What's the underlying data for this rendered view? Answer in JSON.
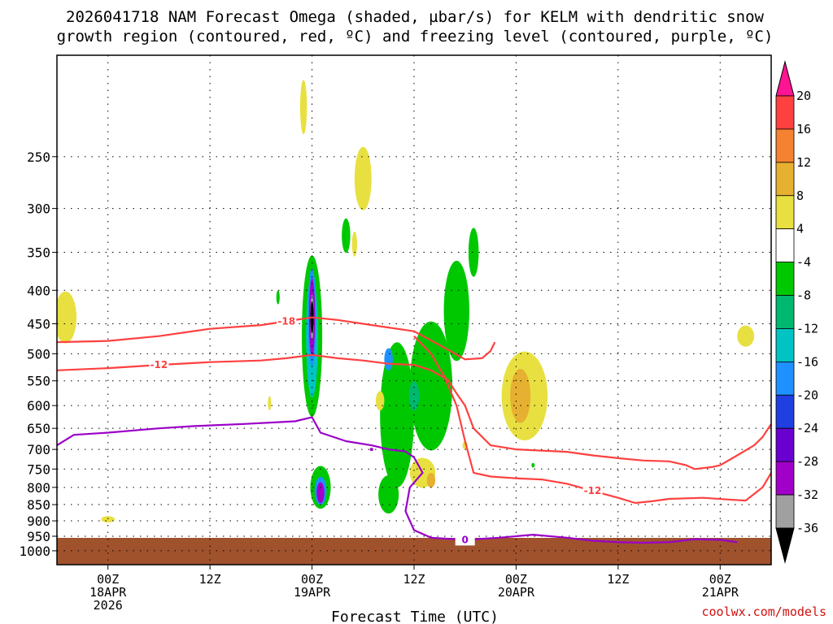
{
  "title_line1": "2026041718 NAM Forecast Omega (shaded, µbar/s) for KELM with dendritic snow",
  "title_line2": "growth region (contoured, red, ºC) and freezing level (contoured, purple, ºC)",
  "credit": "coolwx.com/models",
  "chart_data": {
    "type": "time-height cross section",
    "title": "2026041718 NAM Forecast Omega (shaded, µbar/s) for KELM with dendritic snow growth region (contoured, red, ºC) and freezing level (contoured, purple, ºC)",
    "xlabel": "Forecast Time (UTC)",
    "ylabel": "",
    "x_range_hours": [
      -6,
      78
    ],
    "y_range_hpa": [
      1050,
      175
    ],
    "x_ticks": [
      {
        "hour": 0,
        "l1": "00Z",
        "l2": "18APR",
        "l3": "2026"
      },
      {
        "hour": 12,
        "l1": "12Z",
        "l2": "",
        "l3": ""
      },
      {
        "hour": 24,
        "l1": "00Z",
        "l2": "19APR",
        "l3": ""
      },
      {
        "hour": 36,
        "l1": "12Z",
        "l2": "",
        "l3": ""
      },
      {
        "hour": 48,
        "l1": "00Z",
        "l2": "20APR",
        "l3": ""
      },
      {
        "hour": 60,
        "l1": "12Z",
        "l2": "",
        "l3": ""
      },
      {
        "hour": 72,
        "l1": "00Z",
        "l2": "21APR",
        "l3": ""
      }
    ],
    "y_ticks": [
      250,
      300,
      350,
      400,
      450,
      500,
      550,
      600,
      650,
      700,
      750,
      800,
      850,
      900,
      950,
      1000
    ],
    "colorbar": {
      "levels": [
        "20",
        "16",
        "12",
        "8",
        "4",
        "-4",
        "-8",
        "-12",
        "-16",
        "-20",
        "-24",
        "-28",
        "-32",
        "-36"
      ],
      "colors": [
        "#ff1493",
        "#ff4040",
        "#ff7f00",
        "#ff7f00",
        "#e0b030",
        "#ffffff",
        "#ffff33",
        "#00c800",
        "#00bb6e",
        "#00c4c4",
        "#1e90ff",
        "#1e3cff",
        "#7a00c8",
        "#b400d6",
        "#a0a0a0",
        "#000000"
      ],
      "bands": [
        "#ff1493",
        "#ff4040",
        "#f58231",
        "#e6b030",
        "#e8e040",
        "#ffffff",
        "#00c800",
        "#00b870",
        "#00c4c4",
        "#1e90ff",
        "#1f3fe0",
        "#6a00d0",
        "#a000c8",
        "#a0a0a0",
        "#000000"
      ]
    },
    "ground_color": "#a0522d",
    "dendritic_contours": [
      {
        "label": "-18",
        "color": "#ff4040",
        "points": [
          [
            -6,
            480
          ],
          [
            0,
            478
          ],
          [
            6,
            470
          ],
          [
            12,
            458
          ],
          [
            18,
            452
          ],
          [
            21,
            446
          ],
          [
            24,
            440
          ],
          [
            27,
            444
          ],
          [
            30,
            450
          ],
          [
            33,
            456
          ],
          [
            36,
            462
          ],
          [
            39,
            485
          ],
          [
            42,
            510
          ],
          [
            44,
            508
          ],
          [
            45,
            495
          ],
          [
            45.5,
            480
          ]
        ]
      },
      {
        "label": "-12",
        "color": "#ff4040",
        "points": [
          [
            -6,
            530
          ],
          [
            0,
            526
          ],
          [
            6,
            520
          ],
          [
            12,
            515
          ],
          [
            18,
            512
          ],
          [
            21,
            508
          ],
          [
            24,
            502
          ],
          [
            27,
            508
          ],
          [
            30,
            512
          ],
          [
            33,
            518
          ],
          [
            36,
            520
          ],
          [
            38,
            530
          ],
          [
            40,
            548
          ],
          [
            41,
            575
          ],
          [
            42,
            600
          ],
          [
            43,
            650
          ],
          [
            45,
            690
          ],
          [
            48,
            700
          ],
          [
            54,
            706
          ],
          [
            57,
            715
          ],
          [
            60,
            722
          ],
          [
            63,
            728
          ],
          [
            66,
            730
          ],
          [
            68,
            740
          ],
          [
            69,
            750
          ],
          [
            71,
            745
          ],
          [
            72,
            740
          ],
          [
            74,
            715
          ],
          [
            76,
            690
          ],
          [
            77,
            670
          ],
          [
            78,
            640
          ]
        ]
      },
      {
        "label": "-12",
        "color": "#ff4040",
        "points": [
          [
            36,
            470
          ],
          [
            38,
            500
          ],
          [
            39.5,
            540
          ],
          [
            41,
            600
          ],
          [
            42,
            680
          ],
          [
            43,
            760
          ],
          [
            45,
            770
          ],
          [
            48,
            775
          ],
          [
            51,
            778
          ],
          [
            54,
            790
          ],
          [
            57,
            810
          ],
          [
            60,
            830
          ],
          [
            62,
            845
          ],
          [
            64,
            840
          ],
          [
            66,
            833
          ],
          [
            70,
            830
          ],
          [
            73,
            835
          ],
          [
            75,
            838
          ],
          [
            77,
            800
          ],
          [
            78,
            760
          ]
        ]
      }
    ],
    "freezing_contour": {
      "label": "0",
      "color": "#9a00c8",
      "points": [
        [
          -6,
          690
        ],
        [
          -4,
          665
        ],
        [
          0,
          660
        ],
        [
          6,
          650
        ],
        [
          10,
          645
        ],
        [
          16,
          640
        ],
        [
          20,
          636
        ],
        [
          22,
          634
        ],
        [
          24,
          625
        ],
        [
          25,
          660
        ],
        [
          28,
          680
        ],
        [
          31,
          690
        ],
        [
          33,
          700
        ],
        [
          35,
          705
        ],
        [
          36,
          720
        ],
        [
          37,
          760
        ],
        [
          35.5,
          800
        ],
        [
          35,
          870
        ],
        [
          36,
          930
        ],
        [
          38,
          955
        ],
        [
          42,
          962
        ],
        [
          46,
          955
        ],
        [
          50,
          945
        ],
        [
          54,
          955
        ],
        [
          57,
          965
        ],
        [
          60,
          970
        ],
        [
          63,
          972
        ],
        [
          66,
          970
        ],
        [
          69,
          960
        ],
        [
          72,
          962
        ],
        [
          74,
          970
        ]
      ]
    },
    "omega_blobs": [
      {
        "cx": 24,
        "cy": 470,
        "rx": 1.2,
        "ry": 260,
        "fill": "#00c800",
        "label": "updraft core green"
      },
      {
        "cx": 24,
        "cy": 470,
        "rx": 0.7,
        "ry": 200,
        "fill": "#00c4c4"
      },
      {
        "cx": 24,
        "cy": 440,
        "rx": 0.5,
        "ry": 150,
        "fill": "#1e90ff"
      },
      {
        "cx": 24,
        "cy": 440,
        "rx": 0.35,
        "ry": 120,
        "fill": "#a000c8"
      },
      {
        "cx": 24,
        "cy": 440,
        "rx": 0.2,
        "ry": 70,
        "fill": "#a0a0a0"
      },
      {
        "cx": 24,
        "cy": 440,
        "rx": 0.08,
        "ry": 50,
        "fill": "#000000"
      },
      {
        "cx": 25,
        "cy": 800,
        "rx": 1.2,
        "ry": 120,
        "fill": "#00c800"
      },
      {
        "cx": 25,
        "cy": 810,
        "rx": 0.7,
        "ry": 80,
        "fill": "#1e90ff"
      },
      {
        "cx": 25,
        "cy": 815,
        "rx": 0.45,
        "ry": 60,
        "fill": "#a000c8"
      },
      {
        "cx": 34,
        "cy": 620,
        "rx": 2,
        "ry": 310,
        "fill": "#00c800"
      },
      {
        "cx": 38,
        "cy": 560,
        "rx": 2.5,
        "ry": 250,
        "fill": "#00c800"
      },
      {
        "cx": 41,
        "cy": 430,
        "rx": 1.5,
        "ry": 150,
        "fill": "#00c800"
      },
      {
        "cx": 43,
        "cy": 350,
        "rx": 0.6,
        "ry": 60,
        "fill": "#00c800"
      },
      {
        "cx": 33,
        "cy": 820,
        "rx": 1.2,
        "ry": 110,
        "fill": "#00c800"
      },
      {
        "cx": 36,
        "cy": 580,
        "rx": 0.6,
        "ry": 60,
        "fill": "#00b870"
      },
      {
        "cx": 33,
        "cy": 510,
        "rx": 0.5,
        "ry": 40,
        "fill": "#1e90ff"
      },
      {
        "cx": 28,
        "cy": 330,
        "rx": 0.5,
        "ry": 40,
        "fill": "#00c800"
      },
      {
        "cx": 20,
        "cy": 410,
        "rx": 0.2,
        "ry": 20,
        "fill": "#00c800"
      },
      {
        "cx": 29,
        "cy": 340,
        "rx": 0.3,
        "ry": 30,
        "fill": "#e8e040"
      },
      {
        "cx": 30,
        "cy": 270,
        "rx": 1,
        "ry": 60,
        "fill": "#e8e040"
      },
      {
        "cx": 23,
        "cy": 210,
        "rx": 0.4,
        "ry": 40,
        "fill": "#e8e040"
      },
      {
        "cx": -5,
        "cy": 440,
        "rx": 1.3,
        "ry": 80,
        "fill": "#e8e040"
      },
      {
        "cx": 0,
        "cy": 895,
        "rx": 0.8,
        "ry": 20,
        "fill": "#e8e040"
      },
      {
        "cx": 49,
        "cy": 580,
        "rx": 2.7,
        "ry": 180,
        "fill": "#e8e040"
      },
      {
        "cx": 48.5,
        "cy": 580,
        "rx": 1.2,
        "ry": 110,
        "fill": "#e6b030"
      },
      {
        "cx": 37,
        "cy": 760,
        "rx": 1.5,
        "ry": 80,
        "fill": "#e8e040"
      },
      {
        "cx": 38,
        "cy": 780,
        "rx": 0.5,
        "ry": 40,
        "fill": "#e6b030"
      },
      {
        "cx": 32,
        "cy": 590,
        "rx": 0.5,
        "ry": 40,
        "fill": "#e8e040"
      },
      {
        "cx": 19,
        "cy": 595,
        "rx": 0.15,
        "ry": 30,
        "fill": "#e8e040"
      },
      {
        "cx": 75,
        "cy": 470,
        "rx": 1,
        "ry": 35,
        "fill": "#e8e040"
      },
      {
        "cx": 42,
        "cy": 690,
        "rx": 0.3,
        "ry": 20,
        "fill": "#e8e040"
      },
      {
        "cx": 50,
        "cy": 740,
        "rx": 0.15,
        "ry": 12,
        "fill": "#00c800"
      },
      {
        "cx": 31,
        "cy": 700,
        "rx": 0.2,
        "ry": 6,
        "fill": "#a000c8"
      }
    ]
  }
}
